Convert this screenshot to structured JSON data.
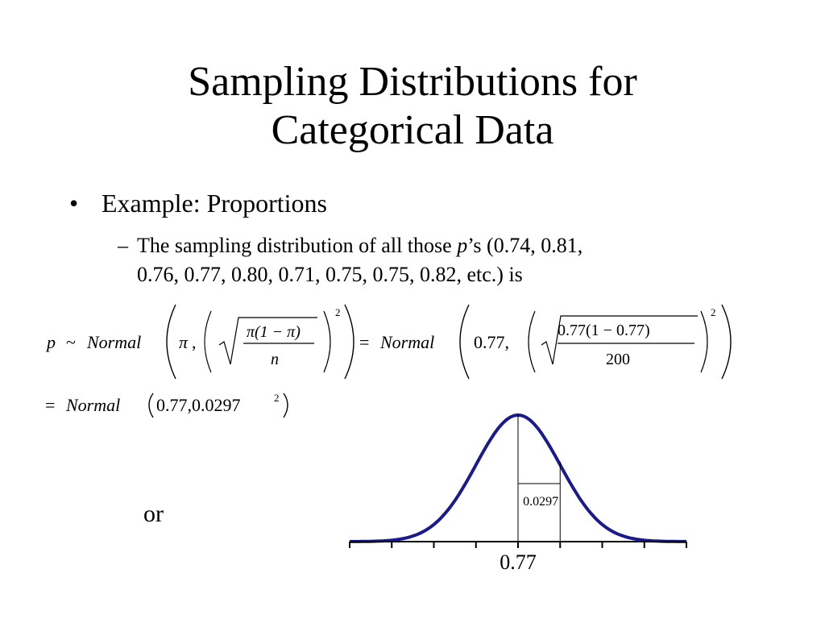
{
  "slide": {
    "title_line1": "Sampling Distributions for",
    "title_line2": "Categorical Data",
    "bullet_marker": "•",
    "bullet": "Example: Proportions",
    "sub_marker": "–",
    "sub_text_before": "The sampling distribution of all those ",
    "sub_text_italic": "p",
    "sub_text_after_line1": "’s (0.74, 0.81,",
    "sub_text_line2": "0.76, 0.77, 0.80, 0.71, 0.75, 0.75, 0.82, etc.) is",
    "or_label": "or"
  },
  "formula": {
    "p": "p",
    "tilde": "~",
    "normal": "Normal",
    "pi": "π",
    "comma": ",",
    "num_generic": "π(1 − π)",
    "den_generic": "n",
    "exp": "2",
    "equals": "=",
    "mean": "0.77,",
    "num_numeric": "0.77(1 − 0.77)",
    "den_numeric": "200",
    "result_args": "0.77,0.0297"
  },
  "chart_data": {
    "type": "line",
    "curve": "normal",
    "mean": 0.77,
    "sd": 0.0297,
    "x_tick_labels": [
      "0.77"
    ],
    "annotation": "0.0297",
    "line_color": "#1a1a8c"
  }
}
